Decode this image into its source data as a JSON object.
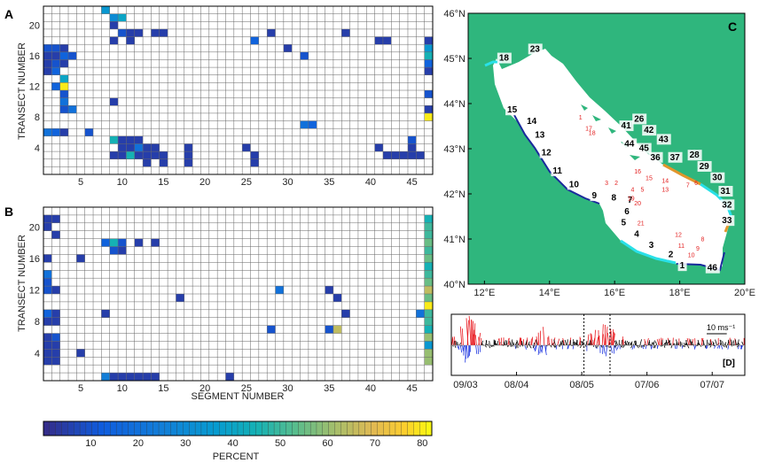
{
  "figure": {
    "panel_a_label": "A",
    "panel_b_label": "B",
    "panel_c_label": "C",
    "panel_d_label": "[D]",
    "colorbar_label": "PERCENT",
    "wind_scale_label": "10 ms⁻¹",
    "colors": {
      "sea": "#ffffff",
      "land": "#2fb67d",
      "coast_highlight_blue": "#1a2a9c",
      "coast_highlight_cyan": "#29e0e8",
      "coast_highlight_orange": "#e1962b",
      "wind_red": "#e8151b",
      "wind_black": "#000000",
      "wind_blue": "#1b33e0",
      "transect_labels": "#e32222"
    }
  },
  "chart_data": [
    {
      "id": "A",
      "type": "heatmap",
      "xlabel": "",
      "ylabel": "TRANSECT NUMBER",
      "xlim": [
        0.5,
        47.5
      ],
      "ylim": [
        0.5,
        22.5
      ],
      "xticks": [
        5,
        10,
        15,
        20,
        25,
        30,
        35,
        40,
        45
      ],
      "yticks": [
        4,
        8,
        12,
        16,
        20
      ],
      "units": "percent",
      "cells": [
        [
          8,
          22,
          35
        ],
        [
          9,
          21,
          30
        ],
        [
          10,
          21,
          40
        ],
        [
          9,
          20,
          5
        ],
        [
          10,
          19,
          10
        ],
        [
          11,
          19,
          5
        ],
        [
          12,
          19,
          5
        ],
        [
          14,
          19,
          5
        ],
        [
          15,
          19,
          5
        ],
        [
          28,
          19,
          5
        ],
        [
          37,
          19,
          5
        ],
        [
          9,
          18,
          5
        ],
        [
          11,
          18,
          5
        ],
        [
          26,
          18,
          15
        ],
        [
          41,
          18,
          5
        ],
        [
          42,
          18,
          5
        ],
        [
          47,
          18,
          5
        ],
        [
          1,
          17,
          10
        ],
        [
          2,
          17,
          10
        ],
        [
          3,
          17,
          5
        ],
        [
          30,
          17,
          5
        ],
        [
          47,
          17,
          35
        ],
        [
          1,
          16,
          5
        ],
        [
          2,
          16,
          5
        ],
        [
          3,
          16,
          15
        ],
        [
          4,
          16,
          10
        ],
        [
          32,
          16,
          10
        ],
        [
          47,
          16,
          45
        ],
        [
          1,
          15,
          5
        ],
        [
          2,
          15,
          10
        ],
        [
          3,
          15,
          5
        ],
        [
          47,
          15,
          15
        ],
        [
          1,
          14,
          5
        ],
        [
          2,
          14,
          15
        ],
        [
          47,
          14,
          5
        ],
        [
          3,
          13,
          40
        ],
        [
          2,
          12,
          15
        ],
        [
          3,
          12,
          80
        ],
        [
          3,
          11,
          10
        ],
        [
          47,
          11,
          10
        ],
        [
          3,
          10,
          20
        ],
        [
          9,
          10,
          5
        ],
        [
          3,
          9,
          10
        ],
        [
          4,
          9,
          20
        ],
        [
          47,
          9,
          5
        ],
        [
          47,
          8,
          80
        ],
        [
          1,
          6,
          20
        ],
        [
          2,
          6,
          15
        ],
        [
          3,
          6,
          5
        ],
        [
          6,
          6,
          10
        ],
        [
          32,
          7,
          20
        ],
        [
          33,
          7,
          15
        ],
        [
          9,
          5,
          45
        ],
        [
          10,
          5,
          5
        ],
        [
          11,
          5,
          5
        ],
        [
          12,
          5,
          5
        ],
        [
          45,
          5,
          10
        ],
        [
          10,
          4,
          5
        ],
        [
          11,
          4,
          5
        ],
        [
          12,
          4,
          20
        ],
        [
          13,
          4,
          5
        ],
        [
          14,
          4,
          5
        ],
        [
          18,
          4,
          5
        ],
        [
          25,
          4,
          5
        ],
        [
          41,
          4,
          5
        ],
        [
          45,
          4,
          5
        ],
        [
          9,
          3,
          5
        ],
        [
          10,
          3,
          5
        ],
        [
          11,
          3,
          45
        ],
        [
          12,
          3,
          5
        ],
        [
          13,
          3,
          5
        ],
        [
          14,
          3,
          5
        ],
        [
          15,
          3,
          5
        ],
        [
          18,
          3,
          5
        ],
        [
          26,
          3,
          5
        ],
        [
          42,
          3,
          5
        ],
        [
          43,
          3,
          5
        ],
        [
          44,
          3,
          5
        ],
        [
          45,
          3,
          5
        ],
        [
          46,
          3,
          5
        ],
        [
          13,
          2,
          5
        ],
        [
          15,
          2,
          5
        ],
        [
          18,
          2,
          5
        ],
        [
          26,
          2,
          5
        ]
      ]
    },
    {
      "id": "B",
      "type": "heatmap",
      "xlabel": "SEGMENT NUMBER",
      "ylabel": "TRANSECT NUMBER",
      "xlim": [
        0.5,
        47.5
      ],
      "ylim": [
        0.5,
        22.5
      ],
      "xticks": [
        5,
        10,
        15,
        20,
        25,
        30,
        35,
        40,
        45
      ],
      "yticks": [
        4,
        8,
        12,
        16,
        20
      ],
      "units": "percent",
      "cells": [
        [
          1,
          21,
          5
        ],
        [
          2,
          21,
          5
        ],
        [
          47,
          21,
          45
        ],
        [
          1,
          20,
          5
        ],
        [
          47,
          20,
          50
        ],
        [
          2,
          19,
          5
        ],
        [
          47,
          19,
          50
        ],
        [
          8,
          18,
          15
        ],
        [
          9,
          18,
          45
        ],
        [
          10,
          18,
          10
        ],
        [
          12,
          18,
          5
        ],
        [
          14,
          18,
          5
        ],
        [
          47,
          18,
          55
        ],
        [
          9,
          17,
          10
        ],
        [
          10,
          17,
          5
        ],
        [
          47,
          17,
          50
        ],
        [
          1,
          16,
          5
        ],
        [
          5,
          16,
          5
        ],
        [
          47,
          16,
          55
        ],
        [
          47,
          15,
          45
        ],
        [
          1,
          14,
          20
        ],
        [
          47,
          14,
          50
        ],
        [
          1,
          13,
          10
        ],
        [
          47,
          13,
          55
        ],
        [
          1,
          12,
          10
        ],
        [
          2,
          12,
          5
        ],
        [
          29,
          12,
          20
        ],
        [
          35,
          12,
          5
        ],
        [
          47,
          12,
          65
        ],
        [
          17,
          11,
          5
        ],
        [
          36,
          11,
          5
        ],
        [
          47,
          11,
          55
        ],
        [
          47,
          10,
          80
        ],
        [
          1,
          9,
          15
        ],
        [
          2,
          9,
          5
        ],
        [
          8,
          9,
          5
        ],
        [
          37,
          9,
          5
        ],
        [
          46,
          9,
          20
        ],
        [
          47,
          9,
          50
        ],
        [
          1,
          8,
          5
        ],
        [
          2,
          8,
          5
        ],
        [
          47,
          8,
          50
        ],
        [
          28,
          7,
          10
        ],
        [
          35,
          7,
          10
        ],
        [
          36,
          7,
          65
        ],
        [
          47,
          7,
          45
        ],
        [
          1,
          6,
          5
        ],
        [
          2,
          6,
          10
        ],
        [
          47,
          6,
          60
        ],
        [
          1,
          5,
          5
        ],
        [
          2,
          5,
          5
        ],
        [
          47,
          5,
          35
        ],
        [
          1,
          4,
          5
        ],
        [
          2,
          4,
          5
        ],
        [
          5,
          4,
          5
        ],
        [
          47,
          4,
          60
        ],
        [
          1,
          3,
          5
        ],
        [
          2,
          3,
          5
        ],
        [
          47,
          3,
          60
        ],
        [
          8,
          1,
          25
        ],
        [
          9,
          1,
          5
        ],
        [
          10,
          1,
          5
        ],
        [
          11,
          1,
          5
        ],
        [
          12,
          1,
          5
        ],
        [
          13,
          1,
          5
        ],
        [
          14,
          1,
          5
        ],
        [
          23,
          1,
          5
        ]
      ]
    },
    {
      "id": "colorbar",
      "type": "colorbar",
      "range": [
        0,
        82
      ],
      "ticks": [
        10,
        20,
        30,
        40,
        50,
        60,
        70,
        80
      ],
      "label": "PERCENT"
    },
    {
      "id": "C",
      "type": "map",
      "xlim": [
        11.5,
        20
      ],
      "ylim": [
        40,
        46
      ],
      "xticks": [
        12,
        14,
        16,
        18,
        20
      ],
      "yticks": [
        40,
        41,
        42,
        43,
        44,
        45,
        46
      ],
      "xtick_labels": [
        "12°E",
        "14°E",
        "16°E",
        "18°E",
        "20°E"
      ],
      "ytick_labels": [
        "40°N",
        "41°N",
        "42°N",
        "43°N",
        "44°N",
        "45°N",
        "46°N"
      ],
      "segment_labels": [
        {
          "t": "1",
          "lon": 18.0,
          "lat": 40.35
        },
        {
          "t": "2",
          "lon": 17.65,
          "lat": 40.6
        },
        {
          "t": "3",
          "lon": 17.05,
          "lat": 40.8
        },
        {
          "t": "4",
          "lon": 16.6,
          "lat": 41.05
        },
        {
          "t": "5",
          "lon": 16.2,
          "lat": 41.3
        },
        {
          "t": "6",
          "lon": 16.3,
          "lat": 41.55
        },
        {
          "t": "7",
          "lon": 16.4,
          "lat": 41.8
        },
        {
          "t": "8",
          "lon": 15.9,
          "lat": 41.85
        },
        {
          "t": "9",
          "lon": 15.3,
          "lat": 41.9
        },
        {
          "t": "10",
          "lon": 14.6,
          "lat": 42.15
        },
        {
          "t": "11",
          "lon": 14.1,
          "lat": 42.45
        },
        {
          "t": "12",
          "lon": 13.75,
          "lat": 42.85
        },
        {
          "t": "13",
          "lon": 13.55,
          "lat": 43.25
        },
        {
          "t": "14",
          "lon": 13.3,
          "lat": 43.55
        },
        {
          "t": "15",
          "lon": 12.7,
          "lat": 43.8
        },
        {
          "t": "18",
          "lon": 12.45,
          "lat": 44.95
        },
        {
          "t": "23",
          "lon": 13.4,
          "lat": 45.15
        },
        {
          "t": "26",
          "lon": 16.6,
          "lat": 43.6
        },
        {
          "t": "28",
          "lon": 18.3,
          "lat": 42.8
        },
        {
          "t": "29",
          "lon": 18.6,
          "lat": 42.55
        },
        {
          "t": "30",
          "lon": 19.0,
          "lat": 42.3
        },
        {
          "t": "31",
          "lon": 19.25,
          "lat": 42.0
        },
        {
          "t": "32",
          "lon": 19.3,
          "lat": 41.7
        },
        {
          "t": "33",
          "lon": 19.3,
          "lat": 41.35
        },
        {
          "t": "36",
          "lon": 17.1,
          "lat": 42.75
        },
        {
          "t": "37",
          "lon": 17.7,
          "lat": 42.75
        },
        {
          "t": "41",
          "lon": 16.2,
          "lat": 43.45
        },
        {
          "t": "42",
          "lon": 16.9,
          "lat": 43.35
        },
        {
          "t": "43",
          "lon": 17.35,
          "lat": 43.15
        },
        {
          "t": "44",
          "lon": 16.3,
          "lat": 43.05
        },
        {
          "t": "45",
          "lon": 16.75,
          "lat": 42.95
        },
        {
          "t": "46",
          "lon": 18.85,
          "lat": 40.3
        }
      ],
      "transect_labels": [
        {
          "t": "1",
          "lon": 14.9,
          "lat": 43.65
        },
        {
          "t": "17",
          "lon": 15.1,
          "lat": 43.4
        },
        {
          "t": "18",
          "lon": 15.2,
          "lat": 43.3
        },
        {
          "t": "3",
          "lon": 15.7,
          "lat": 42.2
        },
        {
          "t": "2",
          "lon": 16.0,
          "lat": 42.2
        },
        {
          "t": "16",
          "lon": 16.6,
          "lat": 42.45
        },
        {
          "t": "15",
          "lon": 16.95,
          "lat": 42.3
        },
        {
          "t": "14",
          "lon": 17.45,
          "lat": 42.25
        },
        {
          "t": "13",
          "lon": 17.45,
          "lat": 42.05
        },
        {
          "t": "5",
          "lon": 16.8,
          "lat": 42.05
        },
        {
          "t": "4",
          "lon": 16.5,
          "lat": 42.05
        },
        {
          "t": "19",
          "lon": 16.4,
          "lat": 41.85
        },
        {
          "t": "20",
          "lon": 16.6,
          "lat": 41.75
        },
        {
          "t": "21",
          "lon": 16.7,
          "lat": 41.3
        },
        {
          "t": "7",
          "lon": 18.2,
          "lat": 42.15
        },
        {
          "t": "6",
          "lon": 18.45,
          "lat": 42.2
        },
        {
          "t": "12",
          "lon": 17.85,
          "lat": 41.05
        },
        {
          "t": "11",
          "lon": 17.95,
          "lat": 40.8
        },
        {
          "t": "10",
          "lon": 18.25,
          "lat": 40.6
        },
        {
          "t": "9",
          "lon": 18.5,
          "lat": 40.75
        },
        {
          "t": "8",
          "lon": 18.65,
          "lat": 40.95
        }
      ]
    },
    {
      "id": "D",
      "type": "line",
      "title": "",
      "xlabel": "",
      "ylabel": "",
      "x_tick_labels": [
        "09/03",
        "08/04",
        "08/05",
        "07/06",
        "07/07"
      ],
      "x_tick_days": [
        0,
        30,
        60,
        90,
        120
      ],
      "x_range_days": [
        0,
        135
      ],
      "y_range_ms": [
        -15,
        15
      ],
      "event_markers_days": [
        61,
        73
      ],
      "scale_arrow_ms": 10
    }
  ]
}
